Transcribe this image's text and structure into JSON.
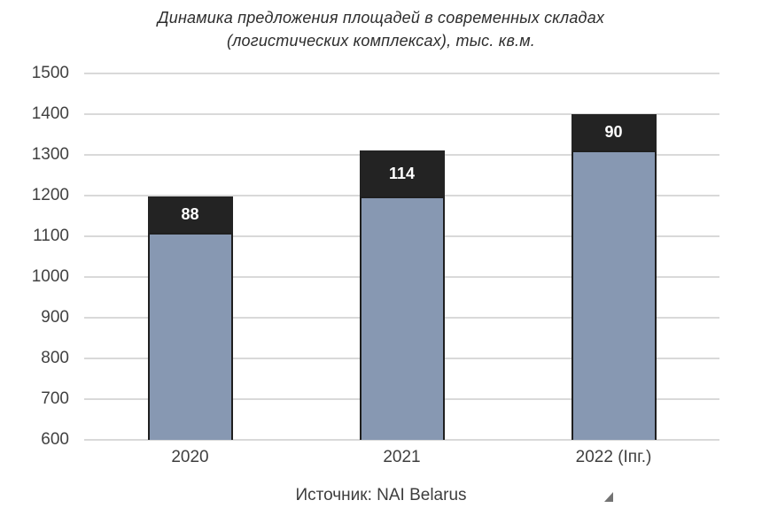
{
  "header": {
    "line1": "Динамика предложения площадей в современных складах",
    "line2": "(логистических комплексах), тыс. кв.м."
  },
  "footer": {
    "source": "Источник: NAI Belarus"
  },
  "colors": {
    "base_fill": "#8798B2",
    "new_fill": "#232323",
    "bar_border": "#1f1f1f",
    "gridline": "#d9d9d9",
    "axis_text": "#414141",
    "title_text": "#2d2d2d",
    "bar_label_text": "#ffffff"
  },
  "chart_data": {
    "type": "bar",
    "stacked": true,
    "title": "Динамика предложения площадей в современных складах (логистических комплексах), тыс. кв.м.",
    "xlabel": "",
    "ylabel": "",
    "categories": [
      "2020",
      "2021",
      "2022 (Iпг.)"
    ],
    "series": [
      {
        "name": "existing-stock",
        "values": [
          1109,
          1197,
          1311
        ],
        "color": "#8798B2"
      },
      {
        "name": "new-supply",
        "values": [
          88,
          114,
          90
        ],
        "color": "#232323",
        "data_labels": [
          "88",
          "114",
          "90"
        ]
      }
    ],
    "totals": [
      1197,
      1311,
      1401
    ],
    "ylim": [
      600,
      1500
    ],
    "ytick_step": 100,
    "yticks": [
      600,
      700,
      800,
      900,
      1000,
      1100,
      1200,
      1300,
      1400,
      1500
    ],
    "grid": true,
    "legend_position": "none"
  }
}
